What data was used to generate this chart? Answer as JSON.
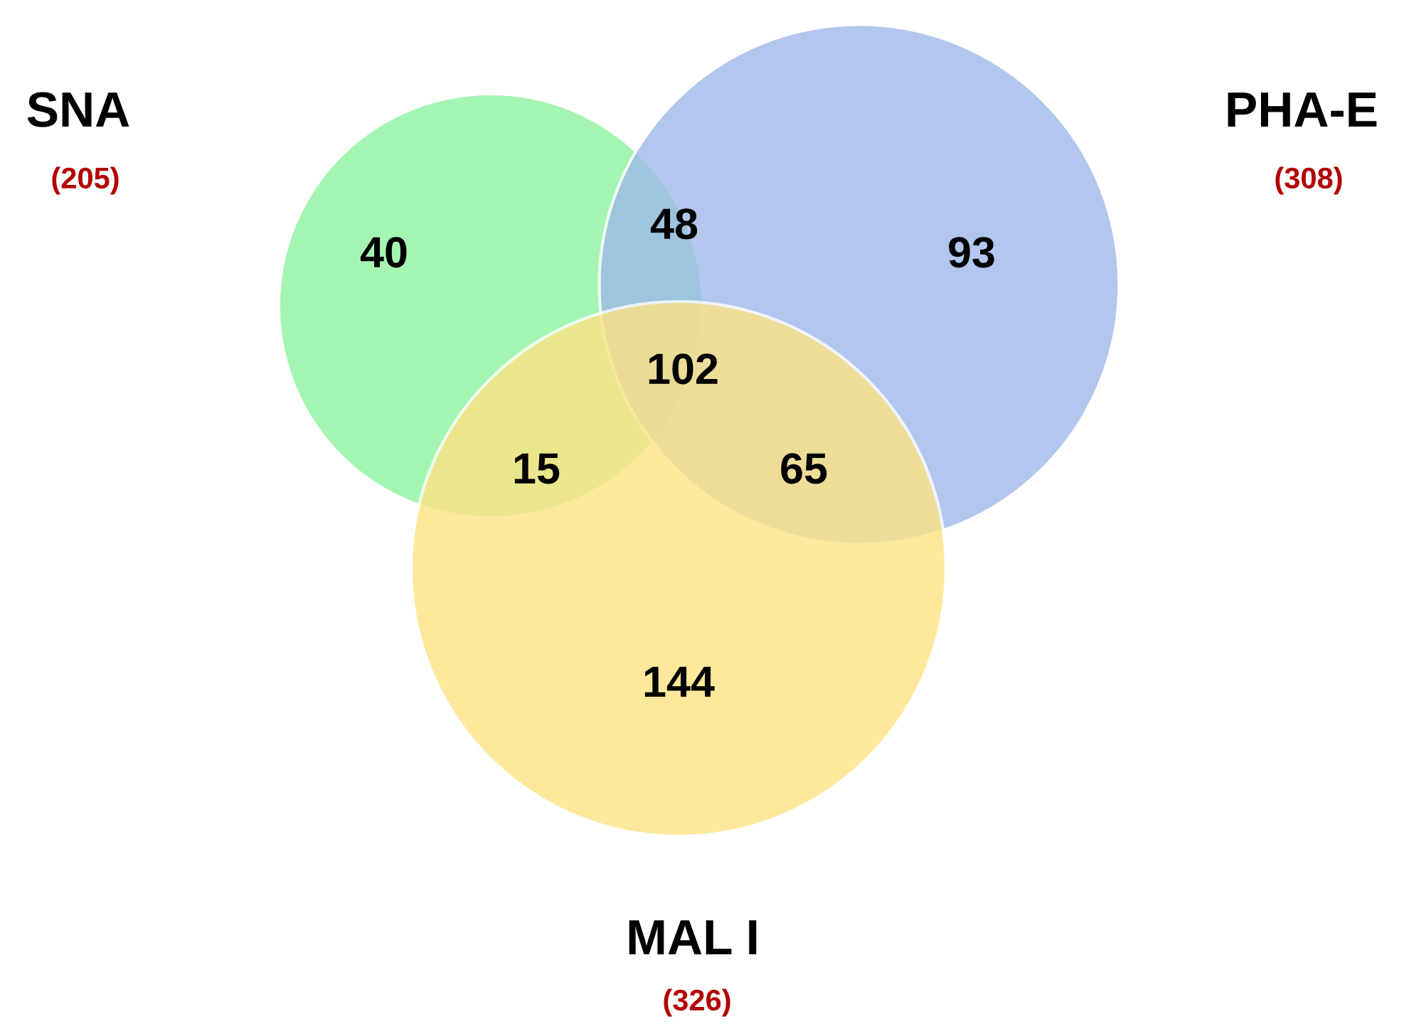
{
  "chart_data": {
    "type": "other",
    "categories": [
      "SNA",
      "PHA-E",
      "MAL I"
    ],
    "values": [
      205,
      308,
      326
    ],
    "value_labels": [
      "(205)",
      "(308)",
      "(326)"
    ],
    "colors": [
      "#8ef39f",
      "#9fb8ea",
      "#fde384"
    ],
    "annotations": [
      "40",
      "48",
      "102",
      "15",
      "93",
      "65",
      "144"
    ]
  }
}
